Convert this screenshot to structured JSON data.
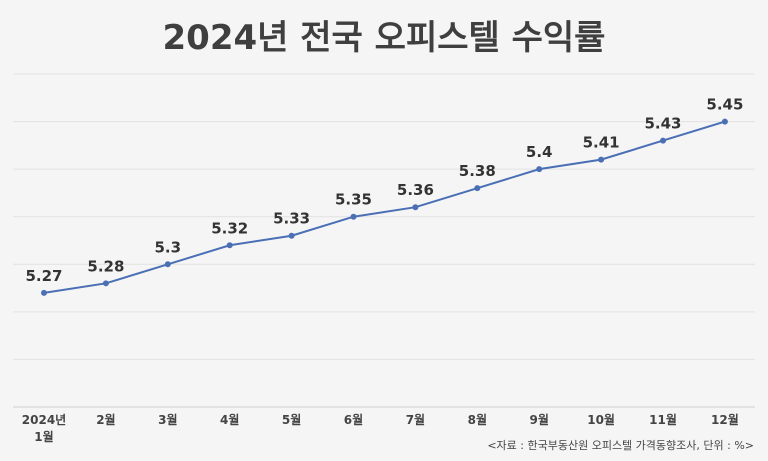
{
  "chart_data": {
    "type": "line",
    "title": "2024년 전국 오피스텔 수익률",
    "categories": [
      "2024년\n1월",
      "2월",
      "3월",
      "4월",
      "5월",
      "6월",
      "7월",
      "8월",
      "9월",
      "10월",
      "11월",
      "12월"
    ],
    "series": [
      {
        "values": [
          5.27,
          5.28,
          5.3,
          5.32,
          5.33,
          5.35,
          5.36,
          5.38,
          5.4,
          5.41,
          5.43,
          5.45
        ]
      }
    ],
    "data_labels": [
      "5.27",
      "5.28",
      "5.3",
      "5.32",
      "5.33",
      "5.35",
      "5.36",
      "5.38",
      "5.4",
      "5.41",
      "5.43",
      "5.45"
    ],
    "ylim": [
      5.15,
      5.5
    ],
    "grid": true,
    "line_color": "#4a6fb5",
    "source": "<자료 : 한국부동산원 오피스텔 가격동향조사, 단위 : %>"
  }
}
